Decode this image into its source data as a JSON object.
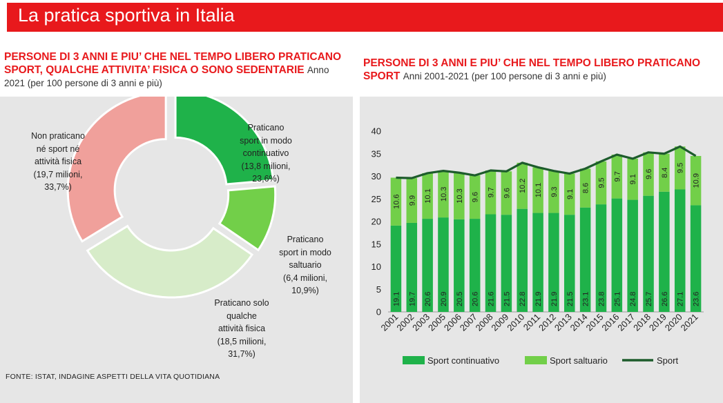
{
  "page": {
    "title": "La pratica sportiva in Italia",
    "left_heading": "PERSONE DI 3 ANNI E PIU’ CHE NEL TEMPO LIBERO PRATICANO SPORT, QUALCHE ATTIVITA’ FISICA O SONO SEDENTARIE",
    "left_note": "Anno 2021 (per 100 persone di 3 anni e più)",
    "right_heading": "PERSONE DI 3 ANNI E PIU’ CHE NEL TEMPO LIBERO PRATICANO SPORT",
    "right_note": "Anni 2001-2021 (per 100 persone di 3 anni e più)",
    "source": "FONTE: ISTAT, INDAGINE ASPETTI DELLA VITA QUOTIDIANA"
  },
  "colors": {
    "brand_red": "#e8191c",
    "sport_continuativo": "#1fb24a",
    "sport_saltuario": "#72cf49",
    "sport_line": "#1d5c2c",
    "panel_bg": "#e6e6e6",
    "donut_non_praticano": "#f0a09b",
    "donut_continuativo": "#1fb24a",
    "donut_saltuario": "#72cf49",
    "donut_solo_attivita": "#d7ecc9"
  },
  "chart_data": [
    {
      "type": "pie",
      "variant": "donut",
      "slices": [
        {
          "label_lines": [
            "Praticano",
            "sport in modo",
            "continuativo",
            "(13,8 milioni,",
            "23,6%)"
          ],
          "value": 23.6,
          "color": "#1fb24a"
        },
        {
          "label_lines": [
            "Praticano",
            "sport in modo",
            "saltuario",
            "(6,4 milioni,",
            "10,9%)"
          ],
          "value": 10.9,
          "color": "#72cf49"
        },
        {
          "label_lines": [
            "Praticano solo",
            "qualche",
            "attività fisica",
            "(18,5 milioni,",
            "31,7%)"
          ],
          "value": 31.7,
          "color": "#d7ecc9"
        },
        {
          "label_lines": [
            "Non praticano",
            "né sport né",
            "attività fisica",
            "(19,7 milioni,",
            "33,7%)"
          ],
          "value": 33.7,
          "color": "#f0a09b"
        }
      ]
    },
    {
      "type": "bar",
      "stacked": true,
      "categories": [
        "2001",
        "2002",
        "2003",
        "2005",
        "2006",
        "2007",
        "2008",
        "2009",
        "2010",
        "2011",
        "2012",
        "2013",
        "2014",
        "2015",
        "2016",
        "2017",
        "2018",
        "2019",
        "2020",
        "2021"
      ],
      "series": [
        {
          "name": "Sport continuativo",
          "type": "bar",
          "color": "#1fb24a",
          "values": [
            19.1,
            19.7,
            20.6,
            20.9,
            20.5,
            20.6,
            21.6,
            21.5,
            22.8,
            21.9,
            21.9,
            21.5,
            23.1,
            23.8,
            25.1,
            24.8,
            25.7,
            26.6,
            27.1,
            23.6
          ]
        },
        {
          "name": "Sport saltuario",
          "type": "bar",
          "color": "#72cf49",
          "values": [
            10.6,
            9.9,
            10.1,
            10.3,
            10.3,
            9.6,
            9.7,
            9.6,
            10.2,
            10.1,
            9.3,
            9.1,
            8.6,
            9.5,
            9.7,
            9.1,
            9.6,
            8.4,
            9.5,
            10.9
          ]
        },
        {
          "name": "Sport",
          "type": "line",
          "color": "#1d5c2c",
          "values": [
            29.7,
            29.6,
            30.7,
            31.2,
            30.8,
            30.2,
            31.3,
            31.1,
            33.0,
            32.0,
            31.2,
            30.6,
            31.7,
            33.3,
            34.8,
            33.9,
            35.3,
            35.0,
            36.6,
            34.5
          ]
        }
      ],
      "ylim": [
        0,
        40
      ],
      "yticks": [
        0,
        5,
        10,
        15,
        20,
        25,
        30,
        35,
        40
      ],
      "legend": "bottom"
    }
  ]
}
